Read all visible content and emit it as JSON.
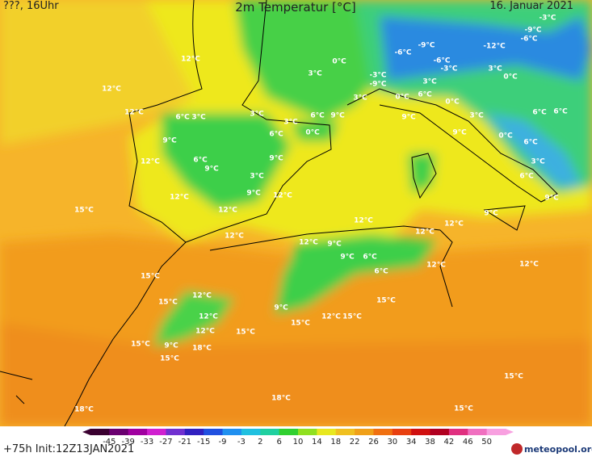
{
  "header": {
    "left": "???, 16Uhr",
    "title": "2m Temperatur [°C]",
    "date": "16. Januar 2021"
  },
  "map_labels": [
    "12°C",
    "12°C",
    "12°C",
    "6°C",
    "3°C",
    "3°C",
    "3°C",
    "6°C",
    "9°C",
    "0°C",
    "3°C",
    "3°C",
    "0°C",
    "6°C",
    "9°C",
    "12°C",
    "6°C",
    "9°C",
    "9°C",
    "3°C",
    "9°C",
    "12°C",
    "12°C",
    "15°C",
    "12°C",
    "12°C",
    "12°C",
    "12°C",
    "9°C",
    "9°C",
    "6°C",
    "6°C",
    "12°C",
    "12°C",
    "12°C",
    "12°C",
    "9°C",
    "9°C",
    "6°C",
    "3°C",
    "6°C",
    "0°C",
    "9°C",
    "3°C",
    "0°C",
    "6°C",
    "3°C",
    "0°C",
    "9°C",
    "-3°C",
    "-9°C",
    "-6°C",
    "-9°C",
    "-6°C",
    "-3°C",
    "-12°C",
    "-6°C",
    "-9°C",
    "-3°C",
    "3°C",
    "0°C",
    "6°C",
    "6°C",
    "15°C",
    "15°C",
    "12°C",
    "12°C",
    "12°C",
    "9°C",
    "15°C",
    "12°C",
    "15°C",
    "15°C",
    "15°C",
    "15°C",
    "9°C",
    "18°C",
    "15°C",
    "18°C",
    "18°C",
    "15°C",
    "15°C"
  ],
  "legend": {
    "ticks": [
      "-45",
      "-39",
      "-33",
      "-27",
      "-21",
      "-15",
      "-9",
      "-3",
      "2",
      "6",
      "10",
      "14",
      "18",
      "22",
      "26",
      "30",
      "34",
      "38",
      "42",
      "46",
      "50"
    ]
  },
  "footer": {
    "run": "+75h Init:12Z13JAN2021",
    "brand": "meteopool.org"
  }
}
